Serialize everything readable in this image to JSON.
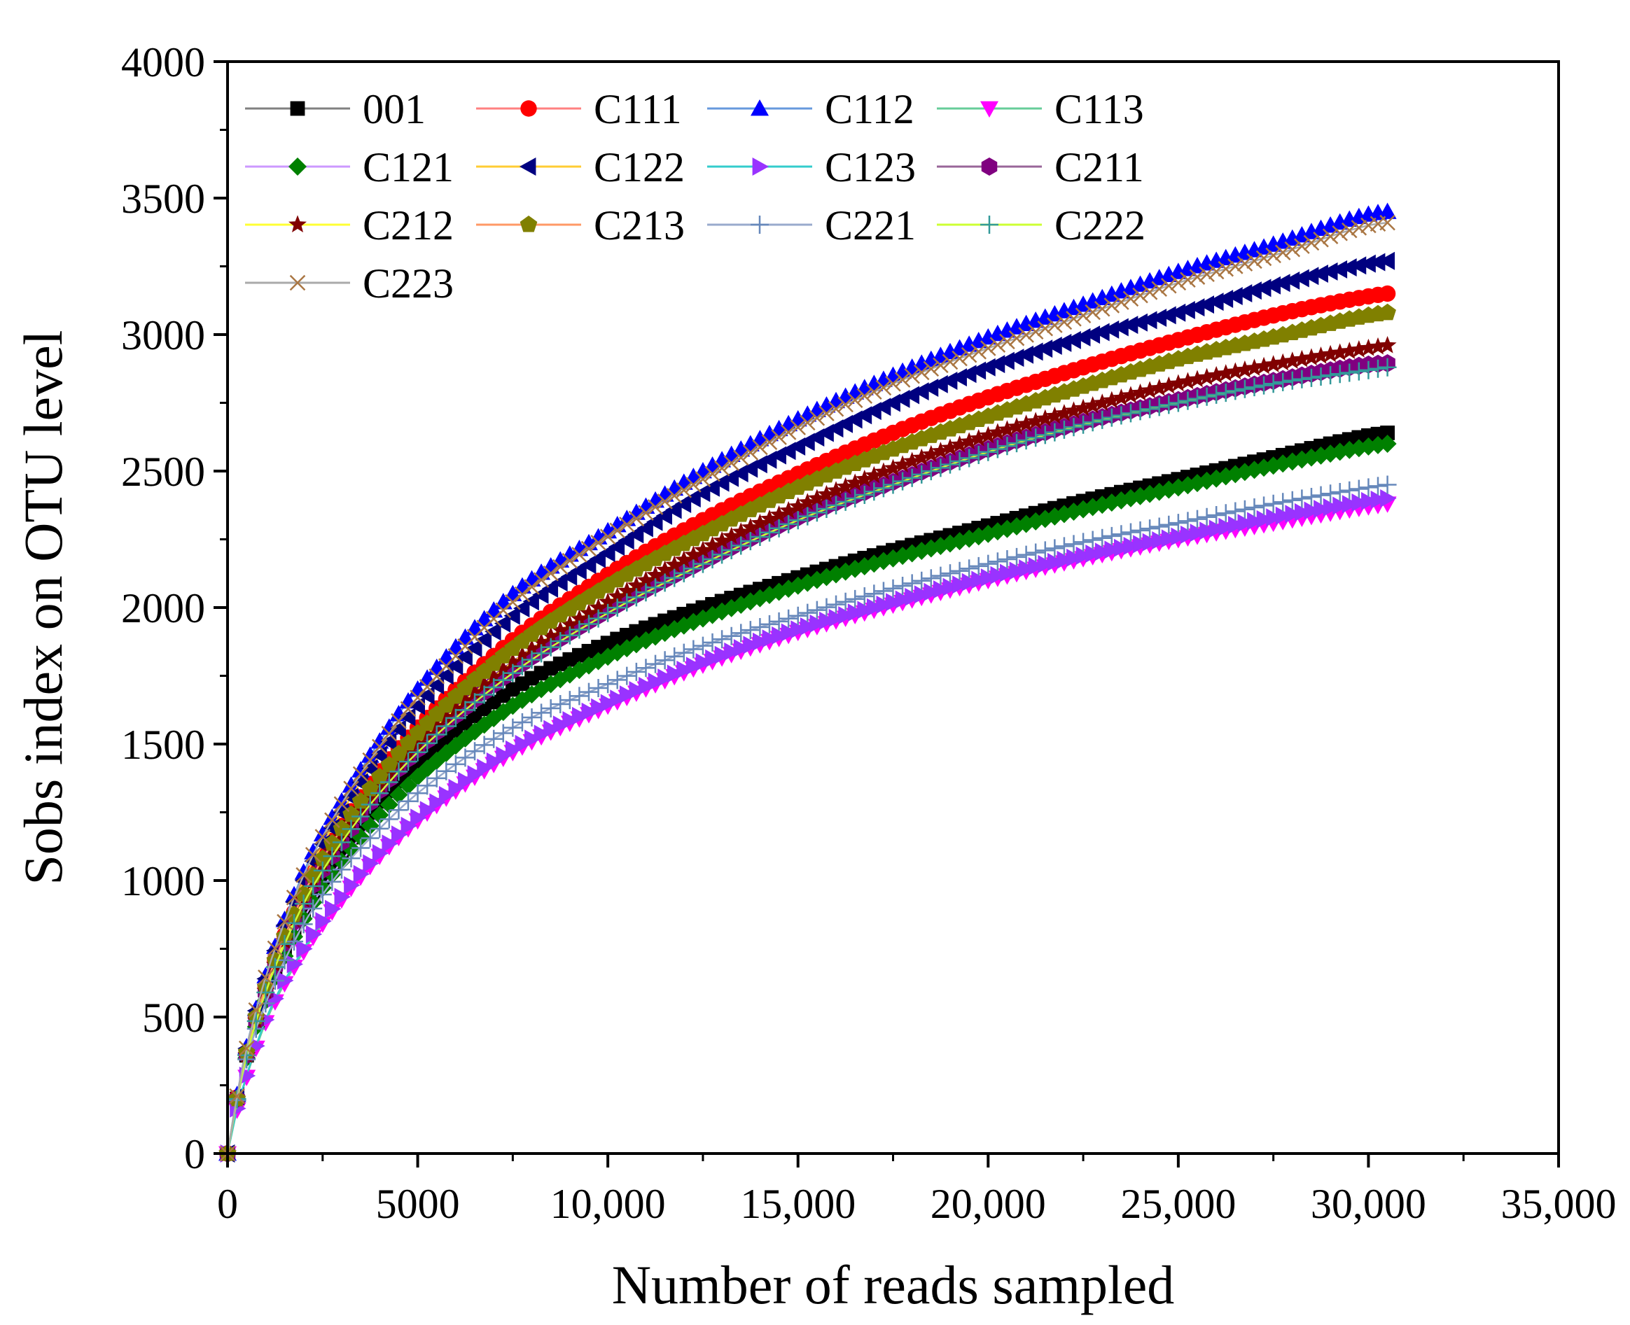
{
  "chart_data": {
    "type": "line",
    "title": "",
    "xlabel": "Number of reads sampled",
    "ylabel": "Sobs index on OTU level",
    "xlim": [
      0,
      35000
    ],
    "ylim": [
      0,
      4000
    ],
    "x_ticks": [
      0,
      5000,
      10000,
      15000,
      20000,
      25000,
      30000,
      35000
    ],
    "x_tick_labels": [
      "0",
      "5000",
      "10,000",
      "15,000",
      "20,000",
      "25,000",
      "30,000",
      "35,000"
    ],
    "y_ticks": [
      0,
      500,
      1000,
      1500,
      2000,
      2500,
      3000,
      3500,
      4000
    ],
    "y_tick_labels": [
      "0",
      "500",
      "1000",
      "1500",
      "2000",
      "2500",
      "3000",
      "3500",
      "4000"
    ],
    "grid": false,
    "legend_position": "top-left",
    "x": [
      0,
      250,
      500,
      1000,
      2000,
      3000,
      4000,
      5000,
      7500,
      10000,
      12500,
      15000,
      17500,
      20000,
      22500,
      25000,
      27500,
      30000,
      30500
    ],
    "series": [
      {
        "name": "001",
        "line_color": "#808080",
        "marker": "square",
        "marker_color": "#000000",
        "values": [
          0,
          200,
          360,
          580,
          890,
          1110,
          1290,
          1430,
          1700,
          1870,
          2000,
          2110,
          2210,
          2300,
          2390,
          2470,
          2550,
          2630,
          2640
        ]
      },
      {
        "name": "C111",
        "line_color": "#ff8080",
        "marker": "circle",
        "marker_color": "#ff0000",
        "values": [
          0,
          205,
          370,
          610,
          960,
          1200,
          1400,
          1560,
          1880,
          2120,
          2320,
          2490,
          2640,
          2770,
          2880,
          2980,
          3070,
          3140,
          3150
        ]
      },
      {
        "name": "C112",
        "line_color": "#6699dd",
        "marker": "triangle-up",
        "marker_color": "#0000ff",
        "values": [
          0,
          215,
          390,
          650,
          1030,
          1290,
          1510,
          1700,
          2050,
          2280,
          2500,
          2690,
          2850,
          2990,
          3110,
          3230,
          3330,
          3440,
          3450
        ]
      },
      {
        "name": "C113",
        "line_color": "#66cc99",
        "marker": "triangle-down",
        "marker_color": "#ff00ff",
        "values": [
          0,
          160,
          280,
          480,
          740,
          930,
          1090,
          1220,
          1470,
          1640,
          1790,
          1910,
          2010,
          2100,
          2180,
          2250,
          2310,
          2370,
          2380
        ]
      },
      {
        "name": "C121",
        "line_color": "#cc99ff",
        "marker": "diamond",
        "marker_color": "#008000",
        "values": [
          0,
          200,
          350,
          560,
          860,
          1070,
          1240,
          1380,
          1640,
          1820,
          1960,
          2080,
          2180,
          2270,
          2360,
          2440,
          2520,
          2590,
          2600
        ]
      },
      {
        "name": "C122",
        "line_color": "#ffcc33",
        "marker": "triangle-left",
        "marker_color": "#000080",
        "values": [
          0,
          210,
          385,
          640,
          1000,
          1250,
          1460,
          1640,
          1970,
          2200,
          2420,
          2590,
          2750,
          2880,
          2990,
          3080,
          3180,
          3260,
          3270
        ]
      },
      {
        "name": "C123",
        "line_color": "#33cccc",
        "marker": "triangle-right",
        "marker_color": "#9933ff",
        "values": [
          0,
          165,
          285,
          490,
          750,
          940,
          1100,
          1230,
          1480,
          1650,
          1800,
          1920,
          2020,
          2110,
          2190,
          2260,
          2330,
          2390,
          2400
        ]
      },
      {
        "name": "C211",
        "line_color": "#996699",
        "marker": "hexagon",
        "marker_color": "#800080",
        "values": [
          0,
          200,
          360,
          590,
          920,
          1140,
          1330,
          1480,
          1770,
          1990,
          2170,
          2330,
          2460,
          2580,
          2680,
          2760,
          2830,
          2890,
          2895
        ]
      },
      {
        "name": "C212",
        "line_color": "#ffff33",
        "marker": "star",
        "marker_color": "#800000",
        "values": [
          0,
          200,
          360,
          595,
          930,
          1160,
          1350,
          1500,
          1800,
          2020,
          2210,
          2370,
          2510,
          2630,
          2730,
          2820,
          2890,
          2950,
          2960
        ]
      },
      {
        "name": "C213",
        "line_color": "#ff9966",
        "marker": "pentagon",
        "marker_color": "#808000",
        "values": [
          0,
          200,
          370,
          610,
          950,
          1190,
          1380,
          1540,
          1850,
          2080,
          2270,
          2440,
          2580,
          2700,
          2810,
          2910,
          2990,
          3070,
          3080
        ]
      },
      {
        "name": "C221",
        "line_color": "#99aacc",
        "marker": "plus",
        "marker_color": "#6688bb",
        "values": [
          0,
          195,
          345,
          550,
          840,
          1040,
          1190,
          1320,
          1560,
          1720,
          1860,
          1970,
          2070,
          2160,
          2240,
          2310,
          2380,
          2440,
          2450
        ]
      },
      {
        "name": "C222",
        "line_color": "#ccff33",
        "marker": "plus",
        "marker_color": "#339999",
        "values": [
          0,
          200,
          360,
          590,
          915,
          1140,
          1320,
          1470,
          1760,
          1980,
          2160,
          2320,
          2450,
          2570,
          2670,
          2750,
          2820,
          2870,
          2880
        ]
      },
      {
        "name": "C223",
        "line_color": "#aaaaaa",
        "marker": "x",
        "marker_color": "#aa7744",
        "values": [
          0,
          210,
          385,
          645,
          1020,
          1280,
          1490,
          1670,
          2020,
          2260,
          2470,
          2660,
          2820,
          2950,
          3070,
          3190,
          3290,
          3400,
          3410
        ]
      }
    ]
  }
}
